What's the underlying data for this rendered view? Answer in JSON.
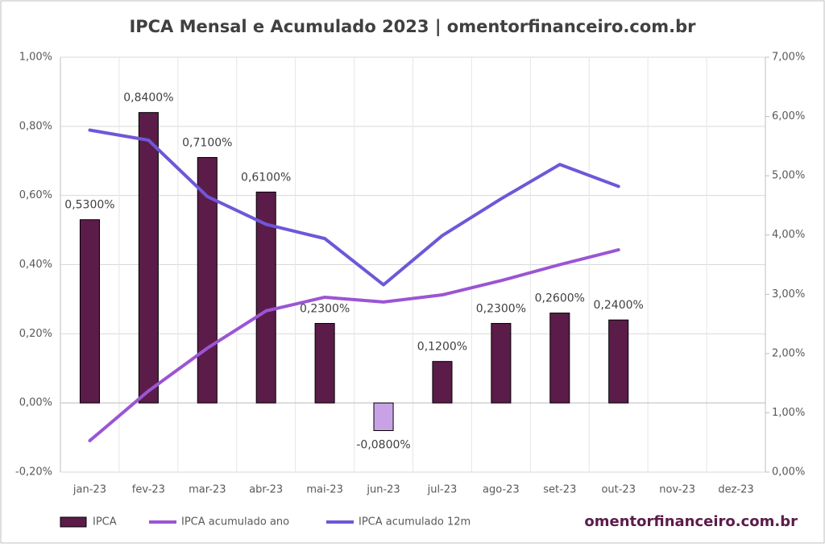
{
  "chart_data": {
    "type": "bar_line",
    "title": "IPCA Mensal e Acumulado 2023 | omentorfinanceiro.com.br",
    "source": "omentorfinanceiro.com.br",
    "categories": [
      "jan-23",
      "fev-23",
      "mar-23",
      "abr-23",
      "mai-23",
      "jun-23",
      "jul-23",
      "ago-23",
      "set-23",
      "out-23",
      "nov-23",
      "dez-23"
    ],
    "series": [
      {
        "name": "IPCA",
        "type": "bar",
        "color": "#5b1c49",
        "negative_color": "#c7a3e6",
        "values": [
          0.53,
          0.84,
          0.71,
          0.61,
          0.23,
          -0.08,
          0.12,
          0.23,
          0.26,
          0.24,
          null,
          null
        ],
        "value_labels": [
          "0,5300%",
          "0,8400%",
          "0,7100%",
          "0,6100%",
          "0,2300%",
          "-0,0800%",
          "0,1200%",
          "0,2300%",
          "0,2600%",
          "0,2400%",
          null,
          null
        ]
      },
      {
        "name": "IPCA acumulado ano",
        "type": "line",
        "axis": "y2",
        "color": "#9b55d4",
        "values": [
          0.53,
          1.37,
          2.09,
          2.72,
          2.95,
          2.87,
          2.99,
          3.23,
          3.5,
          3.75,
          null,
          null
        ]
      },
      {
        "name": "IPCA acumulado 12m",
        "type": "line",
        "axis": "y2",
        "color": "#6f57d8",
        "values": [
          5.77,
          5.6,
          4.65,
          4.18,
          3.94,
          3.16,
          3.99,
          4.61,
          5.19,
          4.82,
          null,
          null
        ]
      }
    ],
    "ylim": [
      -0.2,
      1.0
    ],
    "yticks": [
      {
        "value": -0.2,
        "label": "-0,20%"
      },
      {
        "value": 0,
        "label": "0,00%"
      },
      {
        "value": 0.2,
        "label": "0,20%"
      },
      {
        "value": 0.4,
        "label": "0,40%"
      },
      {
        "value": 0.6,
        "label": "0,60%"
      },
      {
        "value": 0.8,
        "label": "0,80%"
      },
      {
        "value": 1.0,
        "label": "1,00%"
      }
    ],
    "y2lim": [
      0,
      7
    ],
    "y2ticks": [
      {
        "value": 0,
        "label": "0,00%"
      },
      {
        "value": 1,
        "label": "1,00%"
      },
      {
        "value": 2,
        "label": "2,00%"
      },
      {
        "value": 3,
        "label": "3,00%"
      },
      {
        "value": 4,
        "label": "4,00%"
      },
      {
        "value": 5,
        "label": "5,00%"
      },
      {
        "value": 6,
        "label": "6,00%"
      },
      {
        "value": 7,
        "label": "7,00%"
      }
    ],
    "grid": true,
    "x_grid": true,
    "legend": "bottom-left"
  }
}
